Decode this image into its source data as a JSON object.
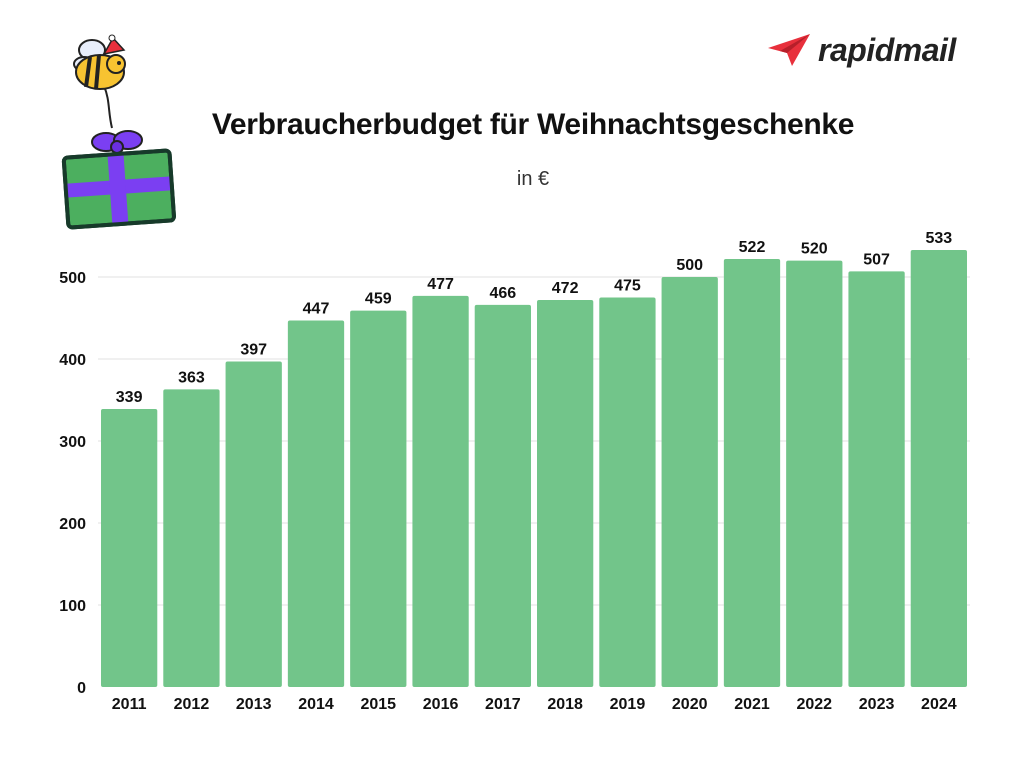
{
  "brand": {
    "name": "rapidmail"
  },
  "colors": {
    "bar": "#72c58a",
    "grid": "#e2e2e2",
    "brand_red": "#e8303c"
  },
  "illustration": {
    "icon": "bee-carrying-gift-icon"
  },
  "chart_data": {
    "type": "bar",
    "title": "Verbraucherbudget für Weihnachtsgeschenke",
    "subtitle": "in €",
    "xlabel": "",
    "ylabel": "",
    "ylim": [
      0,
      533
    ],
    "yticks": [
      0,
      100,
      200,
      300,
      400,
      500
    ],
    "grid": true,
    "categories": [
      "2011",
      "2012",
      "2013",
      "2014",
      "2015",
      "2016",
      "2017",
      "2018",
      "2019",
      "2020",
      "2021",
      "2022",
      "2023",
      "2024"
    ],
    "values": [
      339,
      363,
      397,
      447,
      459,
      477,
      466,
      472,
      475,
      500,
      522,
      520,
      507,
      533
    ]
  }
}
